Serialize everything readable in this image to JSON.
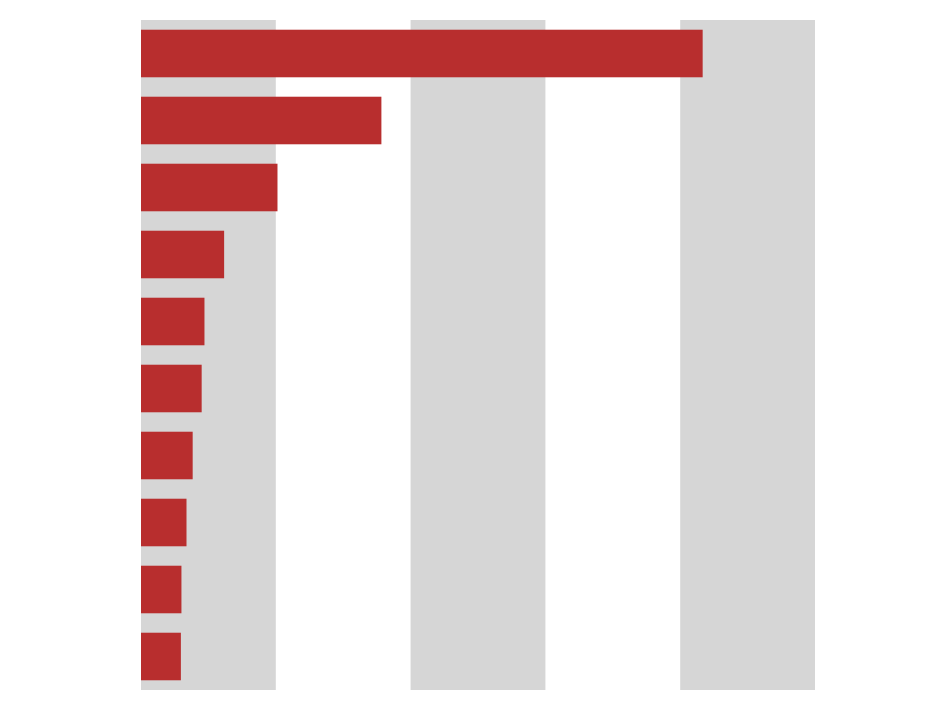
{
  "colors": {
    "background": "#ffffff",
    "band": "#d6d6d6",
    "bar": "#b82e2e"
  },
  "chart_data": {
    "type": "bar",
    "orientation": "horizontal",
    "title": "",
    "xlabel": "",
    "ylabel": "",
    "categories": [
      "",
      "",
      "",
      "",
      "",
      "",
      "",
      "",
      "",
      ""
    ],
    "series": [
      {
        "values": [
          1000,
          428,
          243,
          148,
          113,
          108,
          92,
          81,
          72,
          71
        ]
      }
    ],
    "xlim": [
      0,
      1200
    ],
    "xticks": [
      0,
      240,
      480,
      720,
      960,
      1200
    ],
    "alternating_bands": true,
    "grid": true,
    "legend": "none"
  }
}
